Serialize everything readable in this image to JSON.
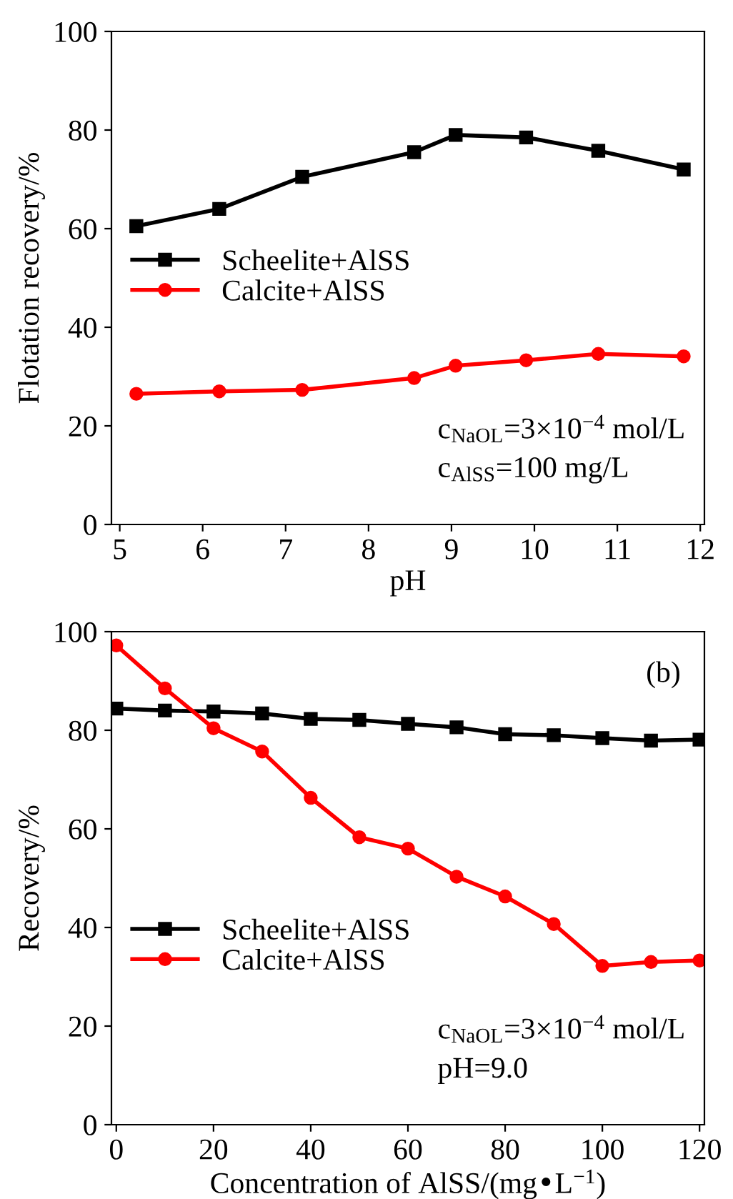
{
  "chart_data": [
    {
      "type": "line",
      "xlabel": "pH",
      "ylabel": "Flotation recovery/%",
      "xlim": [
        4.9,
        12.05
      ],
      "ylim": [
        0,
        100
      ],
      "xticks": [
        5,
        6,
        7,
        8,
        9,
        10,
        11,
        12
      ],
      "yticks": [
        0,
        20,
        40,
        60,
        80,
        100
      ],
      "grid": false,
      "legend": "left",
      "annotations": [
        "c$_{NaOL}$=3×10$^{−4}$ mol/L",
        "c$_{AlSS}$=100 mg/L"
      ],
      "x": [
        5.2,
        6.2,
        7.2,
        8.55,
        9.05,
        9.9,
        10.77,
        11.8
      ],
      "series": [
        {
          "name": "Scheelite+AlSS",
          "color": "#000000",
          "marker": "square",
          "values": [
            60.5,
            64,
            70.5,
            75.5,
            79,
            78.5,
            75.8,
            72
          ]
        },
        {
          "name": "Calcite+AlSS",
          "color": "#ff0000",
          "marker": "circle",
          "values": [
            26.5,
            27,
            27.3,
            29.7,
            32.2,
            33.3,
            34.6,
            34.1
          ]
        }
      ]
    },
    {
      "type": "line",
      "xlabel": "Concentration of AlSS/(mg•L$^{−1}$)",
      "ylabel": "Recovery/%",
      "xlim": [
        -1,
        121
      ],
      "ylim": [
        0,
        100
      ],
      "xticks": [
        0,
        20,
        40,
        60,
        80,
        100,
        120
      ],
      "yticks": [
        0,
        20,
        40,
        60,
        80,
        100
      ],
      "grid": false,
      "legend": "left",
      "annotations": [
        "(b)",
        "c$_{NaOL}$=3×10$^{−4}$ mol/L",
        "pH=9.0"
      ],
      "x": [
        0,
        10,
        20,
        30,
        40,
        50,
        60,
        70,
        80,
        90,
        100,
        110,
        120
      ],
      "series": [
        {
          "name": "Scheelite+AlSS",
          "color": "#000000",
          "marker": "square",
          "values": [
            84.4,
            84,
            83.8,
            83.4,
            82.3,
            82.1,
            81.3,
            80.6,
            79.2,
            79.0,
            78.4,
            77.9,
            78.1
          ]
        },
        {
          "name": "Calcite+AlSS",
          "color": "#ff0000",
          "marker": "circle",
          "values": [
            97.2,
            88.5,
            80.4,
            75.7,
            66.3,
            58.3,
            56,
            50.3,
            46.3,
            40.7,
            32.2,
            33,
            33.3
          ]
        }
      ]
    }
  ]
}
